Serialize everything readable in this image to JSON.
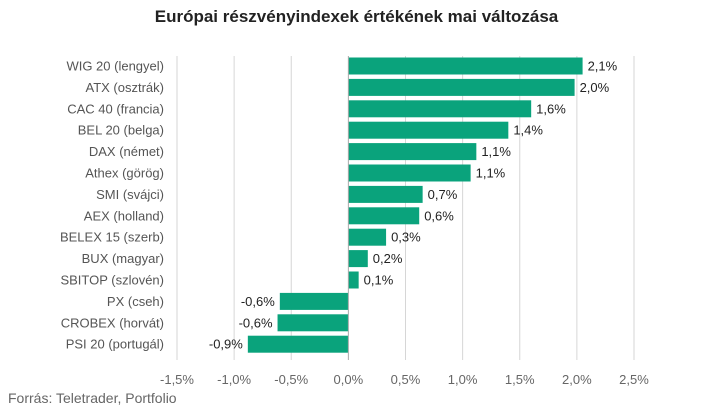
{
  "title": "Európai részvényindexek értékének mai változása",
  "source": "Forrás: Teletrader, Portfolio",
  "colors": {
    "bar": "#0aa37c",
    "grid": "#d6d6d6",
    "zero": "#aaaaaa"
  },
  "chart_data": {
    "type": "bar",
    "orientation": "horizontal",
    "categories": [
      "WIG 20 (lengyel)",
      "ATX (osztrák)",
      "CAC 40 (francia)",
      "BEL 20 (belga)",
      "DAX (német)",
      "Athex (görög)",
      "SMI (svájci)",
      "AEX (holland)",
      "BELEX 15 (szerb)",
      "BUX (magyar)",
      "SBITOP (szlovén)",
      "PX (cseh)",
      "CROBEX (horvát)",
      "PSI 20 (portugál)"
    ],
    "values": [
      2.05,
      1.98,
      1.6,
      1.4,
      1.12,
      1.07,
      0.65,
      0.62,
      0.33,
      0.17,
      0.09,
      -0.6,
      -0.62,
      -0.88
    ],
    "data_labels": [
      "2,1%",
      "2,0%",
      "1,6%",
      "1,4%",
      "1,1%",
      "1,1%",
      "0,7%",
      "0,6%",
      "0,3%",
      "0,2%",
      "0,1%",
      "-0,6%",
      "-0,6%",
      "-0,9%"
    ],
    "xlim": [
      -1.5,
      2.5
    ],
    "xticks": [
      -1.5,
      -1.0,
      -0.5,
      0.0,
      0.5,
      1.0,
      1.5,
      2.0,
      2.5
    ],
    "xtick_labels": [
      "-1,5%",
      "-1,0%",
      "-0,5%",
      "0,0%",
      "0,5%",
      "1,0%",
      "1,5%",
      "2,0%",
      "2,5%"
    ],
    "grid": true,
    "legend": "none"
  }
}
